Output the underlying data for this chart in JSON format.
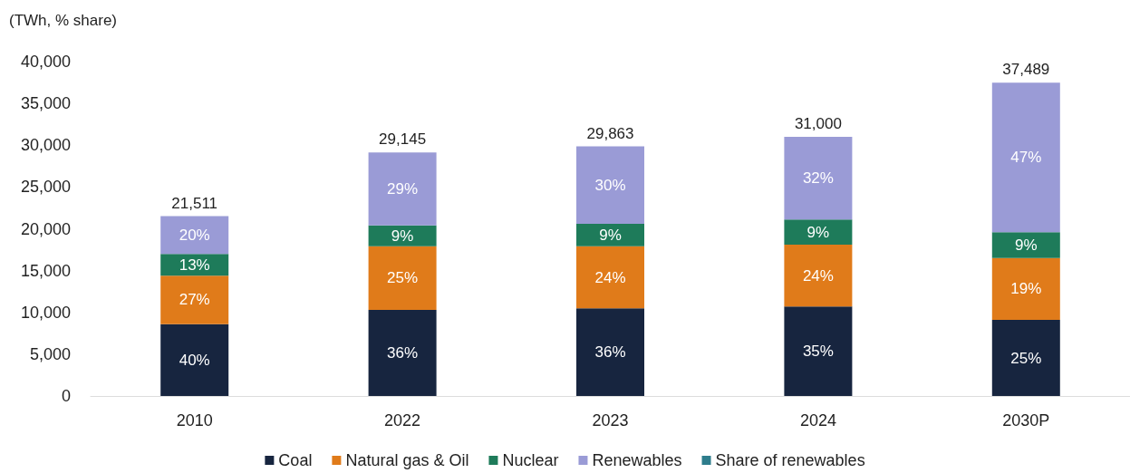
{
  "chart_data": {
    "type": "bar",
    "ylabel": "(TWh, % share)",
    "categories": [
      "2010",
      "2022",
      "2023",
      "2024",
      "2030P"
    ],
    "stacked": true,
    "series": [
      {
        "name": "Coal",
        "color": "#17253f",
        "values": [
          8600,
          10300,
          10500,
          10700,
          9100
        ]
      },
      {
        "name": "Natural gas & Oil",
        "color": "#e07b1a",
        "values": [
          5800,
          7600,
          7400,
          7400,
          7400
        ]
      },
      {
        "name": "Nuclear",
        "color": "#1e7b5a",
        "values": [
          2600,
          2500,
          2700,
          3000,
          3100
        ]
      },
      {
        "name": "Renewables",
        "color": "#9a9bd6",
        "values": [
          4511,
          8745,
          9263,
          9900,
          17889
        ]
      },
      {
        "name": "Share of renewables",
        "color": "#2e7d8c",
        "values": [
          null,
          null,
          null,
          null,
          null
        ]
      }
    ],
    "annotations": [
      "40%",
      "27%",
      "13%",
      "20%",
      "36%",
      "25%",
      "9%",
      "29%",
      "36%",
      "24%",
      "9%",
      "30%",
      "35%",
      "24%",
      "9%",
      "32%",
      "25%",
      "19%",
      "9%",
      "47%"
    ],
    "totals": [
      "21,511",
      "29,145",
      "29,863",
      "31,000",
      "37,489"
    ],
    "ylim": [
      0,
      40000
    ],
    "yticks": [
      0,
      {
        "value": 5000,
        "label": "5,000"
      },
      {
        "value": 10000,
        "label": "10,000"
      },
      {
        "value": 15000,
        "label": "15,000"
      },
      {
        "value": 20000,
        "label": "20,000"
      },
      {
        "value": 25000,
        "label": "25,000"
      },
      {
        "value": 30000,
        "label": "30,000"
      },
      {
        "value": 35000,
        "label": "35,000"
      },
      {
        "value": 40000,
        "label": "40,000"
      }
    ],
    "grid": false,
    "legend": "bottom"
  }
}
